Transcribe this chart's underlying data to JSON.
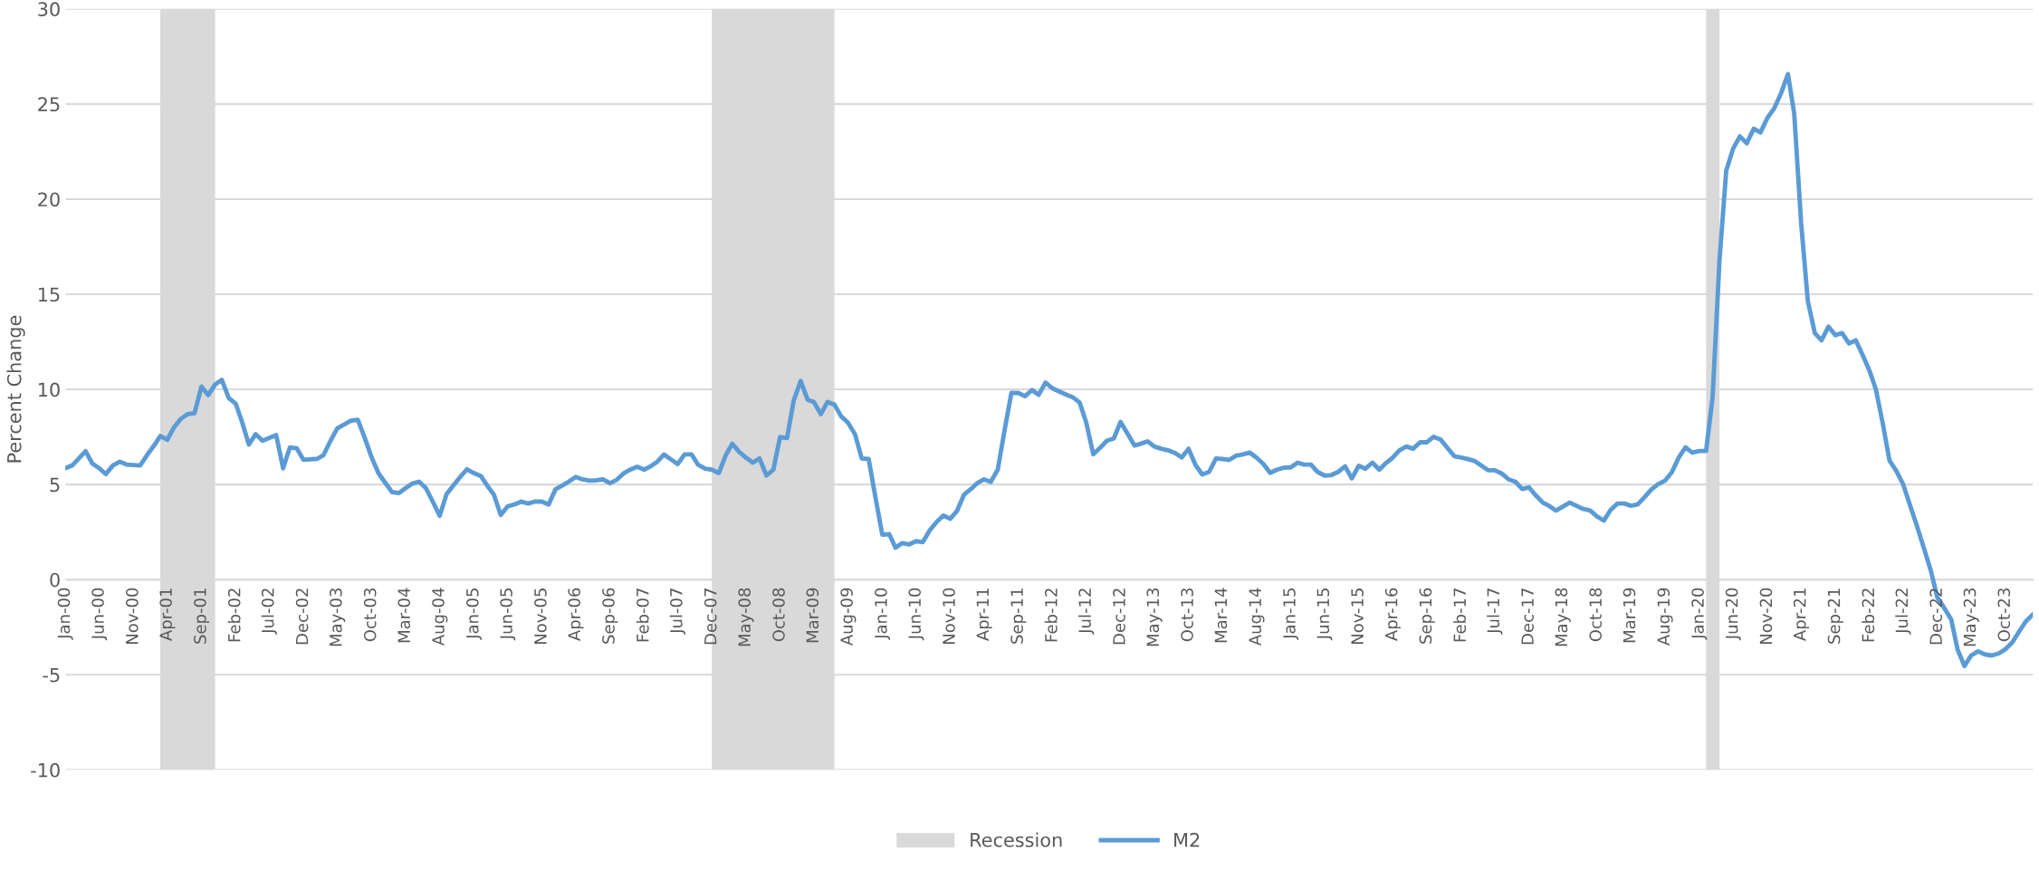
{
  "chart_data": {
    "type": "line",
    "ylabel": "Percent Change",
    "ylim": [
      -10,
      30
    ],
    "yticks": [
      -10,
      -5,
      0,
      5,
      10,
      15,
      20,
      25,
      30
    ],
    "xlim": [
      "2000-01",
      "2024-02"
    ],
    "xticks": [
      {
        "value": "2000-01",
        "label": "Jan-00"
      },
      {
        "value": "2000-06",
        "label": "Jun-00"
      },
      {
        "value": "2000-11",
        "label": "Nov-00"
      },
      {
        "value": "2001-04",
        "label": "Apr-01"
      },
      {
        "value": "2001-09",
        "label": "Sep-01"
      },
      {
        "value": "2002-02",
        "label": "Feb-02"
      },
      {
        "value": "2002-07",
        "label": "Jul-02"
      },
      {
        "value": "2002-12",
        "label": "Dec-02"
      },
      {
        "value": "2003-05",
        "label": "May-03"
      },
      {
        "value": "2003-10",
        "label": "Oct-03"
      },
      {
        "value": "2004-03",
        "label": "Mar-04"
      },
      {
        "value": "2004-08",
        "label": "Aug-04"
      },
      {
        "value": "2005-01",
        "label": "Jan-05"
      },
      {
        "value": "2005-06",
        "label": "Jun-05"
      },
      {
        "value": "2005-11",
        "label": "Nov-05"
      },
      {
        "value": "2006-04",
        "label": "Apr-06"
      },
      {
        "value": "2006-09",
        "label": "Sep-06"
      },
      {
        "value": "2007-02",
        "label": "Feb-07"
      },
      {
        "value": "2007-07",
        "label": "Jul-07"
      },
      {
        "value": "2007-12",
        "label": "Dec-07"
      },
      {
        "value": "2008-05",
        "label": "May-08"
      },
      {
        "value": "2008-10",
        "label": "Oct-08"
      },
      {
        "value": "2009-03",
        "label": "Mar-09"
      },
      {
        "value": "2009-08",
        "label": "Aug-09"
      },
      {
        "value": "2010-01",
        "label": "Jan-10"
      },
      {
        "value": "2010-06",
        "label": "Jun-10"
      },
      {
        "value": "2010-11",
        "label": "Nov-10"
      },
      {
        "value": "2011-04",
        "label": "Apr-11"
      },
      {
        "value": "2011-09",
        "label": "Sep-11"
      },
      {
        "value": "2012-02",
        "label": "Feb-12"
      },
      {
        "value": "2012-07",
        "label": "Jul-12"
      },
      {
        "value": "2012-12",
        "label": "Dec-12"
      },
      {
        "value": "2013-05",
        "label": "May-13"
      },
      {
        "value": "2013-10",
        "label": "Oct-13"
      },
      {
        "value": "2014-03",
        "label": "Mar-14"
      },
      {
        "value": "2014-08",
        "label": "Aug-14"
      },
      {
        "value": "2015-01",
        "label": "Jan-15"
      },
      {
        "value": "2015-06",
        "label": "Jun-15"
      },
      {
        "value": "2015-11",
        "label": "Nov-15"
      },
      {
        "value": "2016-04",
        "label": "Apr-16"
      },
      {
        "value": "2016-09",
        "label": "Sep-16"
      },
      {
        "value": "2017-02",
        "label": "Feb-17"
      },
      {
        "value": "2017-07",
        "label": "Jul-17"
      },
      {
        "value": "2017-12",
        "label": "Dec-17"
      },
      {
        "value": "2018-05",
        "label": "May-18"
      },
      {
        "value": "2018-10",
        "label": "Oct-18"
      },
      {
        "value": "2019-03",
        "label": "Mar-19"
      },
      {
        "value": "2019-08",
        "label": "Aug-19"
      },
      {
        "value": "2020-01",
        "label": "Jan-20"
      },
      {
        "value": "2020-06",
        "label": "Jun-20"
      },
      {
        "value": "2020-11",
        "label": "Nov-20"
      },
      {
        "value": "2021-04",
        "label": "Apr-21"
      },
      {
        "value": "2021-09",
        "label": "Sep-21"
      },
      {
        "value": "2022-02",
        "label": "Feb-22"
      },
      {
        "value": "2022-07",
        "label": "Jul-22"
      },
      {
        "value": "2022-12",
        "label": "Dec-22"
      },
      {
        "value": "2023-05",
        "label": "May-23"
      },
      {
        "value": "2023-10",
        "label": "Oct-23"
      }
    ],
    "grid": "y",
    "legend": "bottom",
    "marker": "none",
    "line_style": "solid",
    "bands": [
      {
        "axis": "x",
        "from": "2001-03",
        "to": "2001-11",
        "label": "Recession",
        "color": "#d9d9d9"
      },
      {
        "axis": "x",
        "from": "2007-12",
        "to": "2009-06",
        "color": "#d9d9d9"
      },
      {
        "axis": "x",
        "from": "2020-02",
        "to": "2020-04",
        "color": "#d9d9d9"
      }
    ],
    "series": [
      {
        "name": "M2",
        "color": "#5b9bd5",
        "x": [
          "2000-01",
          "2000-02",
          "2000-04",
          "2000-05",
          "2000-06",
          "2000-07",
          "2000-08",
          "2000-09",
          "2000-10",
          "2000-12",
          "2001-01",
          "2001-02",
          "2001-03",
          "2001-04",
          "2001-05",
          "2001-06",
          "2001-07",
          "2001-08",
          "2001-09",
          "2001-10",
          "2001-11",
          "2001-12",
          "2002-01",
          "2002-02",
          "2002-03",
          "2002-04",
          "2002-05",
          "2002-06",
          "2002-07",
          "2002-08",
          "2002-09",
          "2002-10",
          "2002-11",
          "2002-12",
          "2003-02",
          "2003-03",
          "2003-04",
          "2003-05",
          "2003-06",
          "2003-07",
          "2003-08",
          "2003-09",
          "2003-10",
          "2003-11",
          "2003-12",
          "2004-01",
          "2004-02",
          "2004-03",
          "2004-04",
          "2004-05",
          "2004-06",
          "2004-07",
          "2004-08",
          "2004-09",
          "2004-10",
          "2004-11",
          "2004-12",
          "2005-01",
          "2005-02",
          "2005-03",
          "2005-04",
          "2005-05",
          "2005-06",
          "2005-07",
          "2005-08",
          "2005-09",
          "2005-10",
          "2005-11",
          "2005-12",
          "2006-01",
          "2006-02",
          "2006-03",
          "2006-04",
          "2006-05",
          "2006-06",
          "2006-07",
          "2006-08",
          "2006-09",
          "2006-10",
          "2006-11",
          "2006-12",
          "2007-01",
          "2007-02",
          "2007-03",
          "2007-04",
          "2007-05",
          "2007-06",
          "2007-07",
          "2007-08",
          "2007-09",
          "2007-10",
          "2007-11",
          "2007-12",
          "2008-01",
          "2008-02",
          "2008-03",
          "2008-04",
          "2008-05",
          "2008-06",
          "2008-07",
          "2008-08",
          "2008-09",
          "2008-10",
          "2008-11",
          "2008-12",
          "2009-01",
          "2009-02",
          "2009-03",
          "2009-04",
          "2009-05",
          "2009-06",
          "2009-07",
          "2009-08",
          "2009-09",
          "2009-10",
          "2009-11",
          "2009-12",
          "2010-01",
          "2010-02",
          "2010-03",
          "2010-04",
          "2010-05",
          "2010-06",
          "2010-07",
          "2010-08",
          "2010-09",
          "2010-10",
          "2010-11",
          "2010-12",
          "2011-01",
          "2011-02",
          "2011-03",
          "2011-04",
          "2011-05",
          "2011-06",
          "2011-07",
          "2011-08",
          "2011-09",
          "2011-10",
          "2011-11",
          "2011-12",
          "2012-01",
          "2012-02",
          "2012-03",
          "2012-04",
          "2012-05",
          "2012-06",
          "2012-07",
          "2012-08",
          "2012-09",
          "2012-10",
          "2012-11",
          "2012-12",
          "2013-01",
          "2013-02",
          "2013-03",
          "2013-04",
          "2013-05",
          "2013-06",
          "2013-07",
          "2013-08",
          "2013-09",
          "2013-10",
          "2013-11",
          "2013-12",
          "2014-01",
          "2014-02",
          "2014-03",
          "2014-04",
          "2014-05",
          "2014-06",
          "2014-07",
          "2014-08",
          "2014-09",
          "2014-10",
          "2014-11",
          "2014-12",
          "2015-01",
          "2015-02",
          "2015-03",
          "2015-04",
          "2015-05",
          "2015-06",
          "2015-07",
          "2015-08",
          "2015-09",
          "2015-10",
          "2015-11",
          "2015-12",
          "2016-01",
          "2016-02",
          "2016-03",
          "2016-04",
          "2016-05",
          "2016-06",
          "2016-07",
          "2016-08",
          "2016-09",
          "2016-10",
          "2016-11",
          "2016-12",
          "2017-01",
          "2017-02",
          "2017-03",
          "2017-04",
          "2017-05",
          "2017-06",
          "2017-07",
          "2017-08",
          "2017-09",
          "2017-10",
          "2017-11",
          "2017-12",
          "2018-01",
          "2018-02",
          "2018-03",
          "2018-04",
          "2018-05",
          "2018-06",
          "2018-07",
          "2018-08",
          "2018-09",
          "2018-10",
          "2018-11",
          "2018-12",
          "2019-01",
          "2019-02",
          "2019-03",
          "2019-04",
          "2019-05",
          "2019-06",
          "2019-07",
          "2019-08",
          "2019-09",
          "2019-10",
          "2019-11",
          "2019-12",
          "2020-01",
          "2020-02",
          "2020-03",
          "2020-04",
          "2020-05",
          "2020-06",
          "2020-07",
          "2020-08",
          "2020-09",
          "2020-10",
          "2020-11",
          "2020-12",
          "2021-01",
          "2021-02",
          "2021-03",
          "2021-04",
          "2021-05",
          "2021-06",
          "2021-07",
          "2021-08",
          "2021-09",
          "2021-10",
          "2021-11",
          "2021-12",
          "2022-01",
          "2022-02",
          "2022-03",
          "2022-04",
          "2022-05",
          "2022-06",
          "2022-07",
          "2022-08",
          "2022-09",
          "2022-10",
          "2022-11",
          "2022-12",
          "2023-01",
          "2023-02",
          "2023-03",
          "2023-04",
          "2023-05",
          "2023-06",
          "2023-07",
          "2023-08",
          "2023-09",
          "2023-10",
          "2023-11",
          "2023-12",
          "2024-01",
          "2024-02"
        ],
        "values": [
          5.86,
          6.0,
          6.75,
          6.1,
          5.85,
          5.55,
          6.0,
          6.2,
          6.05,
          6.0,
          6.55,
          7.05,
          7.55,
          7.35,
          8.0,
          8.45,
          8.7,
          8.75,
          10.15,
          9.7,
          10.25,
          10.5,
          9.55,
          9.25,
          8.3,
          7.1,
          7.65,
          7.3,
          7.45,
          7.6,
          5.85,
          6.95,
          6.9,
          6.3,
          6.35,
          6.55,
          7.3,
          7.95,
          8.15,
          8.35,
          8.4,
          7.45,
          6.45,
          5.6,
          5.1,
          4.6,
          4.55,
          4.8,
          5.05,
          5.15,
          4.8,
          4.1,
          3.35,
          4.5,
          4.95,
          5.4,
          5.8,
          5.6,
          5.45,
          4.95,
          4.45,
          3.4,
          3.85,
          3.95,
          4.1,
          4.0,
          4.1,
          4.1,
          3.95,
          4.75,
          4.95,
          5.15,
          5.4,
          5.27,
          5.2,
          5.22,
          5.27,
          5.07,
          5.24,
          5.58,
          5.78,
          5.93,
          5.78,
          5.95,
          6.2,
          6.58,
          6.32,
          6.07,
          6.58,
          6.58,
          6.03,
          5.83,
          5.78,
          5.6,
          6.54,
          7.14,
          6.71,
          6.42,
          6.15,
          6.37,
          5.47,
          5.78,
          7.5,
          7.44,
          9.42,
          10.44,
          9.46,
          9.34,
          8.7,
          9.34,
          9.2,
          8.58,
          8.24,
          7.64,
          6.37,
          6.34,
          4.34,
          2.36,
          2.39,
          1.68,
          1.92,
          1.85,
          2.02,
          1.97,
          2.59,
          3.03,
          3.37,
          3.2,
          3.61,
          4.46,
          4.76,
          5.07,
          5.27,
          5.14,
          5.78,
          7.81,
          9.81,
          9.81,
          9.64,
          9.97,
          9.71,
          10.36,
          10.05,
          9.9,
          9.73,
          9.59,
          9.31,
          8.24,
          6.59,
          6.93,
          7.3,
          7.42,
          8.29,
          7.68,
          7.05,
          7.14,
          7.27,
          7.0,
          6.88,
          6.8,
          6.66,
          6.42,
          6.88,
          6.03,
          5.53,
          5.66,
          6.37,
          6.34,
          6.29,
          6.51,
          6.58,
          6.68,
          6.41,
          6.08,
          5.61,
          5.78,
          5.88,
          5.9,
          6.15,
          6.05,
          6.05,
          5.66,
          5.47,
          5.49,
          5.66,
          5.95,
          5.32,
          5.98,
          5.83,
          6.15,
          5.78,
          6.12,
          6.41,
          6.8,
          7.0,
          6.88,
          7.22,
          7.22,
          7.51,
          7.36,
          6.93,
          6.49,
          6.41,
          6.34,
          6.24,
          6.0,
          5.75,
          5.75,
          5.58,
          5.27,
          5.15,
          4.76,
          4.85,
          4.42,
          4.05,
          3.88,
          3.63,
          3.83,
          4.05,
          3.88,
          3.71,
          3.63,
          3.32,
          3.1,
          3.66,
          4.0,
          4.0,
          3.88,
          3.95,
          4.32,
          4.74,
          5.01,
          5.2,
          5.65,
          6.4,
          6.95,
          6.68,
          6.76,
          6.76,
          9.58,
          16.8,
          21.5,
          22.66,
          23.3,
          22.94,
          23.7,
          23.5,
          24.27,
          24.76,
          25.57,
          26.57,
          24.49,
          18.73,
          14.63,
          12.96,
          12.58,
          13.3,
          12.85,
          12.96,
          12.41,
          12.58,
          11.8,
          10.97,
          10.0,
          8.2,
          6.26,
          5.7,
          5.01,
          3.9,
          2.8,
          1.69,
          0.5,
          -0.94,
          -1.5,
          -2.1,
          -3.66,
          -4.54,
          -3.99,
          -3.77,
          -3.93,
          -3.99,
          -3.88,
          -3.66,
          -3.3,
          -2.74,
          -2.19,
          -1.83
        ]
      }
    ]
  }
}
